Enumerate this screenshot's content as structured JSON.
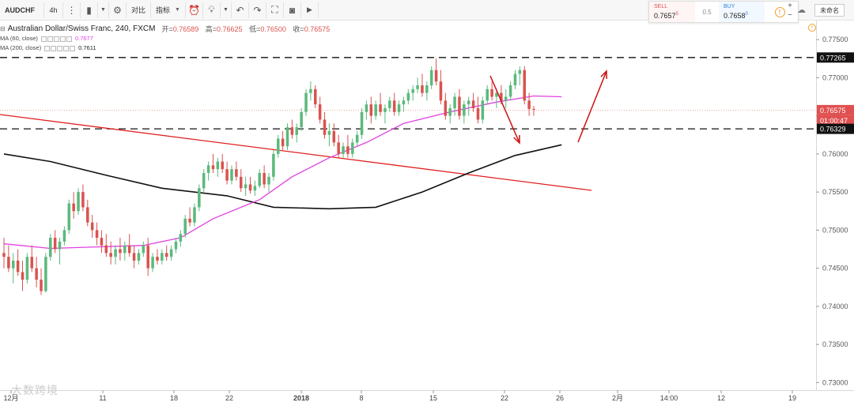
{
  "toolbar": {
    "symbol": "AUDCHF",
    "timeframe": "4h",
    "compare_label": "对比",
    "indicators_label": "指标",
    "unnamed_label": "未命名"
  },
  "quote": {
    "sell_label": "SELL",
    "sell_price": "0.7657",
    "sell_sup": "5",
    "spread": "0.5",
    "buy_label": "BUY",
    "buy_price": "0.7658",
    "buy_sup": "0"
  },
  "legend": {
    "title": "Australian Dollar/Swiss Franc, 240, FXCM",
    "open_label": "开=",
    "open": "0.76589",
    "high_label": "高=",
    "high": "0.76625",
    "low_label": "低=",
    "low": "0.76500",
    "close_label": "收=",
    "close": "0.76575",
    "ma60_label": "MA (60, close)",
    "ma60_value": "0.7677",
    "ma200_label": "MA (200, close)",
    "ma200_value": "0.7611"
  },
  "watermark": "大数跨境",
  "colors": {
    "up": "#5cb97d",
    "down": "#d9534f",
    "ma60": "#e040e0",
    "ma200": "#111111",
    "trendline": "#e02020",
    "arrow": "#cc1010",
    "dashed": "#111111"
  },
  "chart_data": {
    "type": "candlestick",
    "title": "Australian Dollar/Swiss Franc, 240, FXCM",
    "price_ylim": [
      0.729,
      0.7775
    ],
    "y_ticks": [
      "0.77500",
      "0.77000",
      "0.76500",
      "0.76000",
      "0.75500",
      "0.75000",
      "0.74500",
      "0.74000",
      "0.73500",
      "0.73000"
    ],
    "x_ticks": [
      "12月",
      "11",
      "18",
      "22",
      "2018",
      "8",
      "15",
      "22",
      "26",
      "2月",
      "14:00",
      "12",
      "19"
    ],
    "price_labels": {
      "resistance": "0.77265",
      "current": "0.76575",
      "countdown": "01:00:47",
      "support": "0.76329"
    },
    "levels": {
      "resistance": 0.77265,
      "support": 0.76329,
      "current": 0.76575
    },
    "candles": [
      [
        0.747,
        0.749,
        0.745,
        0.7465
      ],
      [
        0.7465,
        0.748,
        0.7445,
        0.745
      ],
      [
        0.745,
        0.747,
        0.743,
        0.746
      ],
      [
        0.746,
        0.7475,
        0.744,
        0.7445
      ],
      [
        0.7445,
        0.746,
        0.742,
        0.7435
      ],
      [
        0.7435,
        0.747,
        0.743,
        0.7465
      ],
      [
        0.7465,
        0.748,
        0.7445,
        0.745
      ],
      [
        0.745,
        0.7465,
        0.7425,
        0.7435
      ],
      [
        0.7435,
        0.745,
        0.7415,
        0.742
      ],
      [
        0.742,
        0.747,
        0.7418,
        0.7465
      ],
      [
        0.7465,
        0.7495,
        0.746,
        0.749
      ],
      [
        0.749,
        0.75,
        0.747,
        0.7475
      ],
      [
        0.7475,
        0.749,
        0.7455,
        0.7485
      ],
      [
        0.7485,
        0.7505,
        0.748,
        0.75
      ],
      [
        0.75,
        0.754,
        0.7495,
        0.7535
      ],
      [
        0.7535,
        0.755,
        0.7515,
        0.7525
      ],
      [
        0.7525,
        0.7555,
        0.752,
        0.755
      ],
      [
        0.755,
        0.756,
        0.7525,
        0.753
      ],
      [
        0.753,
        0.754,
        0.7505,
        0.751
      ],
      [
        0.751,
        0.752,
        0.749,
        0.75
      ],
      [
        0.75,
        0.751,
        0.748,
        0.749
      ],
      [
        0.749,
        0.75,
        0.747,
        0.748
      ],
      [
        0.748,
        0.7495,
        0.7465,
        0.747
      ],
      [
        0.747,
        0.7485,
        0.7455,
        0.7465
      ],
      [
        0.7465,
        0.748,
        0.7455,
        0.7475
      ],
      [
        0.7475,
        0.749,
        0.746,
        0.747
      ],
      [
        0.747,
        0.7485,
        0.746,
        0.748
      ],
      [
        0.748,
        0.7495,
        0.7465,
        0.747
      ],
      [
        0.747,
        0.748,
        0.745,
        0.746
      ],
      [
        0.746,
        0.7475,
        0.7455,
        0.747
      ],
      [
        0.747,
        0.7485,
        0.7465,
        0.748
      ],
      [
        0.748,
        0.749,
        0.744,
        0.745
      ],
      [
        0.745,
        0.747,
        0.7445,
        0.7465
      ],
      [
        0.7465,
        0.7475,
        0.7455,
        0.746
      ],
      [
        0.746,
        0.7475,
        0.7455,
        0.747
      ],
      [
        0.747,
        0.748,
        0.746,
        0.7465
      ],
      [
        0.7465,
        0.748,
        0.746,
        0.7475
      ],
      [
        0.7475,
        0.749,
        0.747,
        0.7485
      ],
      [
        0.7485,
        0.75,
        0.7478,
        0.7495
      ],
      [
        0.7495,
        0.752,
        0.749,
        0.7515
      ],
      [
        0.7515,
        0.753,
        0.7505,
        0.751
      ],
      [
        0.751,
        0.7535,
        0.7505,
        0.753
      ],
      [
        0.753,
        0.756,
        0.7525,
        0.7555
      ],
      [
        0.7555,
        0.758,
        0.755,
        0.7575
      ],
      [
        0.7575,
        0.759,
        0.7565,
        0.7585
      ],
      [
        0.7585,
        0.76,
        0.7575,
        0.758
      ],
      [
        0.758,
        0.7595,
        0.757,
        0.759
      ],
      [
        0.759,
        0.76,
        0.7575,
        0.758
      ],
      [
        0.758,
        0.759,
        0.756,
        0.7565
      ],
      [
        0.7565,
        0.7585,
        0.756,
        0.758
      ],
      [
        0.758,
        0.759,
        0.7565,
        0.757
      ],
      [
        0.757,
        0.758,
        0.755,
        0.7555
      ],
      [
        0.7555,
        0.757,
        0.7545,
        0.756
      ],
      [
        0.756,
        0.757,
        0.7548,
        0.7552
      ],
      [
        0.7552,
        0.7565,
        0.7545,
        0.7558
      ],
      [
        0.7558,
        0.758,
        0.7555,
        0.7575
      ],
      [
        0.7575,
        0.7585,
        0.7555,
        0.756
      ],
      [
        0.756,
        0.7575,
        0.755,
        0.757
      ],
      [
        0.757,
        0.7605,
        0.7565,
        0.76
      ],
      [
        0.76,
        0.7625,
        0.7595,
        0.762
      ],
      [
        0.762,
        0.763,
        0.7605,
        0.761
      ],
      [
        0.761,
        0.764,
        0.7605,
        0.7635
      ],
      [
        0.7635,
        0.7645,
        0.762,
        0.7625
      ],
      [
        0.7625,
        0.764,
        0.7615,
        0.7635
      ],
      [
        0.7635,
        0.766,
        0.763,
        0.7655
      ],
      [
        0.7655,
        0.7685,
        0.765,
        0.768
      ],
      [
        0.768,
        0.7695,
        0.767,
        0.7685
      ],
      [
        0.7685,
        0.769,
        0.766,
        0.7665
      ],
      [
        0.7665,
        0.7675,
        0.764,
        0.7645
      ],
      [
        0.7645,
        0.7655,
        0.762,
        0.7625
      ],
      [
        0.7625,
        0.764,
        0.761,
        0.763
      ],
      [
        0.763,
        0.764,
        0.761,
        0.7615
      ],
      [
        0.7615,
        0.7625,
        0.7595,
        0.76
      ],
      [
        0.76,
        0.7615,
        0.7595,
        0.761
      ],
      [
        0.761,
        0.7625,
        0.7595,
        0.76
      ],
      [
        0.76,
        0.762,
        0.7595,
        0.7615
      ],
      [
        0.7615,
        0.763,
        0.761,
        0.7625
      ],
      [
        0.7625,
        0.766,
        0.762,
        0.7655
      ],
      [
        0.7655,
        0.767,
        0.7645,
        0.7665
      ],
      [
        0.7665,
        0.7675,
        0.764,
        0.765
      ],
      [
        0.765,
        0.767,
        0.7645,
        0.7665
      ],
      [
        0.7665,
        0.768,
        0.765,
        0.7655
      ],
      [
        0.7655,
        0.7665,
        0.764,
        0.766
      ],
      [
        0.766,
        0.7675,
        0.7655,
        0.767
      ],
      [
        0.767,
        0.768,
        0.765,
        0.7655
      ],
      [
        0.7655,
        0.767,
        0.765,
        0.7665
      ],
      [
        0.7665,
        0.7675,
        0.7655,
        0.767
      ],
      [
        0.767,
        0.7685,
        0.7665,
        0.768
      ],
      [
        0.768,
        0.769,
        0.767,
        0.7685
      ],
      [
        0.7685,
        0.77,
        0.768,
        0.769
      ],
      [
        0.769,
        0.7705,
        0.7675,
        0.768
      ],
      [
        0.768,
        0.7695,
        0.767,
        0.769
      ],
      [
        0.769,
        0.7715,
        0.7685,
        0.771
      ],
      [
        0.771,
        0.7725,
        0.769,
        0.7695
      ],
      [
        0.7695,
        0.771,
        0.7665,
        0.767
      ],
      [
        0.767,
        0.768,
        0.7645,
        0.765
      ],
      [
        0.765,
        0.7665,
        0.764,
        0.766
      ],
      [
        0.766,
        0.768,
        0.765,
        0.7675
      ],
      [
        0.7675,
        0.7685,
        0.7645,
        0.765
      ],
      [
        0.765,
        0.767,
        0.764,
        0.7665
      ],
      [
        0.7665,
        0.7675,
        0.765,
        0.767
      ],
      [
        0.767,
        0.768,
        0.7655,
        0.766
      ],
      [
        0.766,
        0.7675,
        0.764,
        0.7645
      ],
      [
        0.7645,
        0.7675,
        0.764,
        0.767
      ],
      [
        0.767,
        0.769,
        0.7665,
        0.7685
      ],
      [
        0.7685,
        0.7695,
        0.767,
        0.7675
      ],
      [
        0.7675,
        0.7685,
        0.766,
        0.768
      ],
      [
        0.768,
        0.769,
        0.7665,
        0.767
      ],
      [
        0.767,
        0.7685,
        0.766,
        0.7675
      ],
      [
        0.7675,
        0.7695,
        0.767,
        0.769
      ],
      [
        0.769,
        0.771,
        0.7685,
        0.7705
      ],
      [
        0.7705,
        0.7715,
        0.769,
        0.771
      ],
      [
        0.771,
        0.7715,
        0.7665,
        0.767
      ],
      [
        0.767,
        0.768,
        0.765,
        0.7659
      ],
      [
        0.7659,
        0.7663,
        0.765,
        0.7658
      ]
    ],
    "ma60": [
      [
        0,
        0.7482
      ],
      [
        10,
        0.7476
      ],
      [
        20,
        0.7478
      ],
      [
        30,
        0.748
      ],
      [
        38,
        0.749
      ],
      [
        45,
        0.7515
      ],
      [
        55,
        0.754
      ],
      [
        62,
        0.757
      ],
      [
        70,
        0.7595
      ],
      [
        78,
        0.7615
      ],
      [
        86,
        0.764
      ],
      [
        96,
        0.7655
      ],
      [
        106,
        0.7668
      ],
      [
        114,
        0.7676
      ],
      [
        120,
        0.7675
      ]
    ],
    "ma200": [
      [
        0,
        0.76
      ],
      [
        10,
        0.759
      ],
      [
        22,
        0.7572
      ],
      [
        34,
        0.7555
      ],
      [
        48,
        0.7545
      ],
      [
        58,
        0.753
      ],
      [
        70,
        0.7528
      ],
      [
        80,
        0.753
      ],
      [
        90,
        0.755
      ],
      [
        100,
        0.7575
      ],
      [
        110,
        0.7598
      ],
      [
        120,
        0.7612
      ]
    ]
  }
}
